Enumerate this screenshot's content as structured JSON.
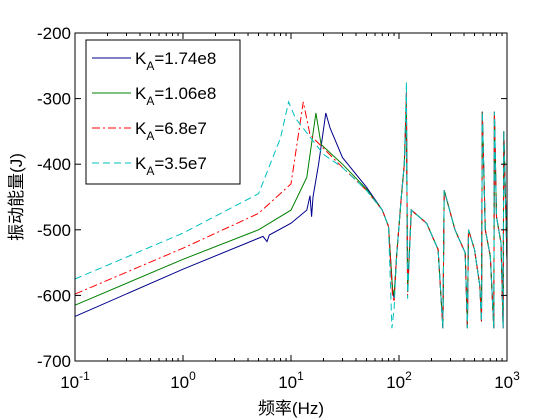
{
  "chart_data": {
    "type": "line",
    "title": "",
    "xlabel": "频率(Hz)",
    "ylabel": "振动能量(J)",
    "xscale": "log",
    "xlim": [
      0.1,
      1000
    ],
    "ylim": [
      -700,
      -200
    ],
    "grid": false,
    "legend_position": "top-left",
    "x_ticks": [
      {
        "value": 0.1,
        "base": "10",
        "exp": "-1"
      },
      {
        "value": 1,
        "base": "10",
        "exp": "0"
      },
      {
        "value": 10,
        "base": "10",
        "exp": "1"
      },
      {
        "value": 100,
        "base": "10",
        "exp": "2"
      },
      {
        "value": 1000,
        "base": "10",
        "exp": "3"
      }
    ],
    "y_ticks": [
      "-200",
      "-300",
      "-400",
      "-500",
      "-600",
      "-700"
    ],
    "series": [
      {
        "name": "K_A=1.74e8",
        "legend_main": "K",
        "legend_sub": "A",
        "legend_value": "=1.74e8",
        "color": "#00008b",
        "dash": "solid",
        "points": [
          [
            0.1,
            -632
          ],
          [
            1,
            -560
          ],
          [
            5.5,
            -510
          ],
          [
            6.0,
            -518
          ],
          [
            6.3,
            -508
          ],
          [
            10,
            -490
          ],
          [
            14,
            -470
          ],
          [
            15,
            -448
          ],
          [
            15.5,
            -480
          ],
          [
            16,
            -450
          ],
          [
            18,
            -400
          ],
          [
            21,
            -322
          ],
          [
            23,
            -345
          ],
          [
            30,
            -390
          ],
          [
            50,
            -435
          ],
          [
            70,
            -470
          ],
          [
            80,
            -495
          ],
          [
            87,
            -590
          ],
          [
            90,
            -605
          ],
          [
            95,
            -540
          ],
          [
            105,
            -450
          ],
          [
            112,
            -400
          ],
          [
            117,
            -315
          ],
          [
            120,
            -590
          ],
          [
            130,
            -470
          ],
          [
            180,
            -490
          ],
          [
            230,
            -530
          ],
          [
            255,
            -650
          ],
          [
            262,
            -440
          ],
          [
            330,
            -500
          ],
          [
            410,
            -535
          ],
          [
            430,
            -650
          ],
          [
            440,
            -500
          ],
          [
            500,
            -530
          ],
          [
            560,
            -585
          ],
          [
            580,
            -640
          ],
          [
            590,
            -320
          ],
          [
            630,
            -500
          ],
          [
            700,
            -540
          ],
          [
            755,
            -650
          ],
          [
            765,
            -320
          ],
          [
            800,
            -480
          ],
          [
            880,
            -520
          ],
          [
            920,
            -650
          ],
          [
            935,
            -350
          ],
          [
            1000,
            -545
          ]
        ]
      },
      {
        "name": "K_A=1.06e8",
        "legend_main": "K",
        "legend_sub": "A",
        "legend_value": "=1.06e8",
        "color": "#008000",
        "dash": "solid",
        "points": [
          [
            0.1,
            -615
          ],
          [
            1,
            -545
          ],
          [
            5,
            -500
          ],
          [
            10,
            -470
          ],
          [
            14,
            -420
          ],
          [
            17,
            -322
          ],
          [
            19,
            -370
          ],
          [
            30,
            -400
          ],
          [
            50,
            -438
          ],
          [
            70,
            -470
          ],
          [
            80,
            -495
          ],
          [
            87,
            -590
          ],
          [
            90,
            -600
          ],
          [
            95,
            -540
          ],
          [
            105,
            -450
          ],
          [
            112,
            -400
          ],
          [
            117,
            -300
          ],
          [
            120,
            -595
          ],
          [
            130,
            -470
          ],
          [
            180,
            -490
          ],
          [
            230,
            -530
          ],
          [
            255,
            -650
          ],
          [
            262,
            -440
          ],
          [
            330,
            -500
          ],
          [
            410,
            -535
          ],
          [
            430,
            -650
          ],
          [
            440,
            -500
          ],
          [
            500,
            -530
          ],
          [
            560,
            -585
          ],
          [
            580,
            -640
          ],
          [
            590,
            -320
          ],
          [
            630,
            -500
          ],
          [
            700,
            -540
          ],
          [
            755,
            -650
          ],
          [
            765,
            -320
          ],
          [
            800,
            -480
          ],
          [
            880,
            -520
          ],
          [
            920,
            -650
          ],
          [
            935,
            -350
          ],
          [
            1000,
            -545
          ]
        ]
      },
      {
        "name": "K_A=6.8e7",
        "legend_main": "K",
        "legend_sub": "A",
        "legend_value": "=6.8e7",
        "color": "#ff0000",
        "dash": "dashdot",
        "points": [
          [
            0.1,
            -598
          ],
          [
            1,
            -528
          ],
          [
            5,
            -475
          ],
          [
            10,
            -430
          ],
          [
            13,
            -305
          ],
          [
            15,
            -355
          ],
          [
            30,
            -405
          ],
          [
            50,
            -440
          ],
          [
            70,
            -470
          ],
          [
            80,
            -495
          ],
          [
            87,
            -600
          ],
          [
            90,
            -610
          ],
          [
            95,
            -540
          ],
          [
            105,
            -450
          ],
          [
            112,
            -400
          ],
          [
            117,
            -290
          ],
          [
            120,
            -600
          ],
          [
            130,
            -470
          ],
          [
            180,
            -490
          ],
          [
            230,
            -530
          ],
          [
            255,
            -650
          ],
          [
            262,
            -440
          ],
          [
            330,
            -500
          ],
          [
            410,
            -535
          ],
          [
            430,
            -650
          ],
          [
            440,
            -500
          ],
          [
            500,
            -530
          ],
          [
            560,
            -585
          ],
          [
            580,
            -640
          ],
          [
            590,
            -320
          ],
          [
            630,
            -500
          ],
          [
            700,
            -540
          ],
          [
            755,
            -650
          ],
          [
            765,
            -320
          ],
          [
            800,
            -480
          ],
          [
            880,
            -520
          ],
          [
            920,
            -650
          ],
          [
            935,
            -350
          ],
          [
            1000,
            -545
          ]
        ]
      },
      {
        "name": "K_A=3.5e7",
        "legend_main": "K",
        "legend_sub": "A",
        "legend_value": "=3.5e7",
        "color": "#00bfbf",
        "dash": "dashed",
        "points": [
          [
            0.1,
            -575
          ],
          [
            1,
            -505
          ],
          [
            5,
            -445
          ],
          [
            8,
            -360
          ],
          [
            9.5,
            -305
          ],
          [
            11,
            -330
          ],
          [
            20,
            -385
          ],
          [
            30,
            -405
          ],
          [
            50,
            -440
          ],
          [
            70,
            -470
          ],
          [
            80,
            -495
          ],
          [
            86,
            -650
          ],
          [
            90,
            -620
          ],
          [
            95,
            -540
          ],
          [
            105,
            -450
          ],
          [
            112,
            -400
          ],
          [
            117,
            -275
          ],
          [
            120,
            -605
          ],
          [
            130,
            -470
          ],
          [
            180,
            -490
          ],
          [
            230,
            -530
          ],
          [
            255,
            -650
          ],
          [
            262,
            -440
          ],
          [
            330,
            -500
          ],
          [
            410,
            -535
          ],
          [
            430,
            -650
          ],
          [
            440,
            -500
          ],
          [
            500,
            -530
          ],
          [
            560,
            -585
          ],
          [
            580,
            -640
          ],
          [
            590,
            -320
          ],
          [
            630,
            -500
          ],
          [
            700,
            -540
          ],
          [
            755,
            -650
          ],
          [
            765,
            -320
          ],
          [
            800,
            -480
          ],
          [
            880,
            -520
          ],
          [
            920,
            -650
          ],
          [
            935,
            -350
          ],
          [
            1000,
            -545
          ]
        ]
      }
    ]
  }
}
